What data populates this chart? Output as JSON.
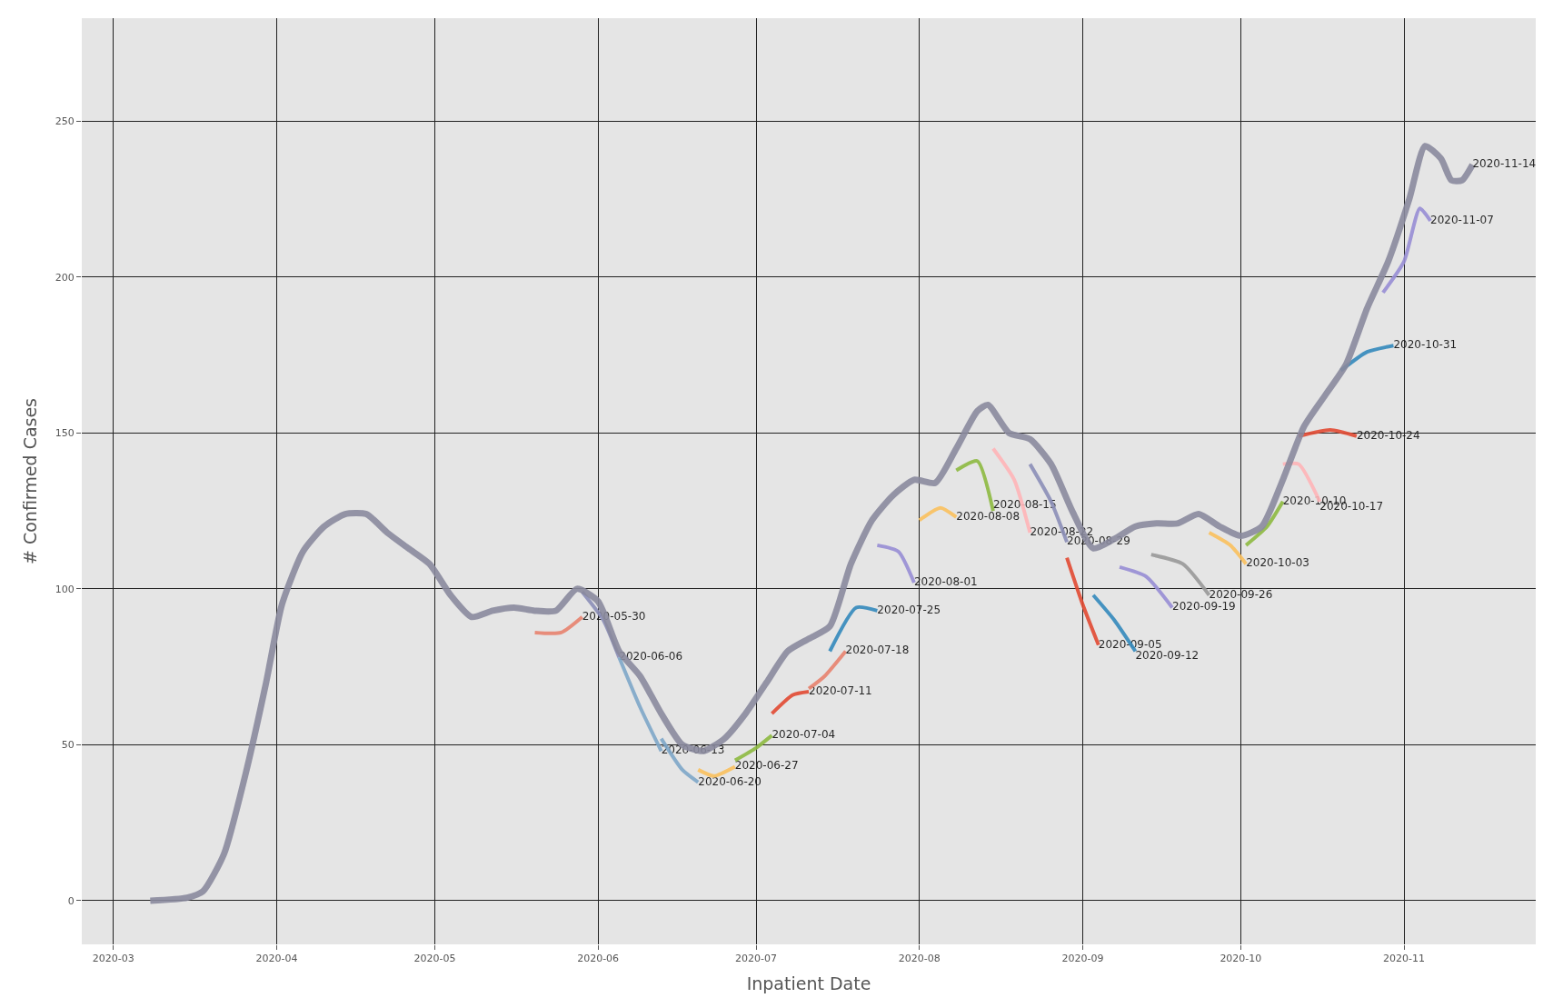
{
  "chart_data": {
    "type": "line",
    "xlabel": "Inpatient Date",
    "ylabel": "# Confirmed Cases",
    "xlim": [
      "2020-02-24",
      "2020-11-26"
    ],
    "ylim": [
      -14,
      283
    ],
    "xticks": [
      {
        "value": "2020-03-01",
        "label": "2020-03"
      },
      {
        "value": "2020-04-01",
        "label": "2020-04"
      },
      {
        "value": "2020-05-01",
        "label": "2020-05"
      },
      {
        "value": "2020-06-01",
        "label": "2020-06"
      },
      {
        "value": "2020-07-01",
        "label": "2020-07"
      },
      {
        "value": "2020-08-01",
        "label": "2020-08"
      },
      {
        "value": "2020-09-01",
        "label": "2020-09"
      },
      {
        "value": "2020-10-01",
        "label": "2020-10"
      },
      {
        "value": "2020-11-01",
        "label": "2020-11"
      }
    ],
    "yticks": [
      0,
      50,
      100,
      150,
      200,
      250
    ],
    "grid": true,
    "legend": false,
    "marker": "none",
    "line_style": "solid",
    "series": [
      {
        "name": "2020-05-30",
        "color": "#e8836f",
        "x": [
          "2020-05-20",
          "2020-05-25",
          "2020-05-29"
        ],
        "values": [
          86,
          86,
          91
        ]
      },
      {
        "name": "2020-06-06",
        "color": "#8c8fb8",
        "x": [
          "2020-05-29",
          "2020-06-02",
          "2020-06-05"
        ],
        "values": [
          99,
          90,
          78
        ]
      },
      {
        "name": "2020-06-13",
        "color": "#7fa7c9",
        "x": [
          "2020-06-05",
          "2020-06-09",
          "2020-06-13"
        ],
        "values": [
          78,
          62,
          48
        ]
      },
      {
        "name": "2020-06-20",
        "color": "#7fa7c9",
        "x": [
          "2020-06-13",
          "2020-06-17",
          "2020-06-20"
        ],
        "values": [
          52,
          42,
          38
        ]
      },
      {
        "name": "2020-06-27",
        "color": "#fbc15e",
        "x": [
          "2020-06-20",
          "2020-06-23",
          "2020-06-27"
        ],
        "values": [
          42,
          40,
          43
        ]
      },
      {
        "name": "2020-07-04",
        "color": "#8eba42",
        "x": [
          "2020-06-27",
          "2020-07-01",
          "2020-07-04"
        ],
        "values": [
          45,
          49,
          53
        ]
      },
      {
        "name": "2020-07-11",
        "color": "#e24a33",
        "x": [
          "2020-07-04",
          "2020-07-08",
          "2020-07-11"
        ],
        "values": [
          60,
          66,
          67
        ]
      },
      {
        "name": "2020-07-18",
        "color": "#e8836f",
        "x": [
          "2020-07-11",
          "2020-07-14",
          "2020-07-18"
        ],
        "values": [
          68,
          72,
          80
        ]
      },
      {
        "name": "2020-07-25",
        "color": "#348abd",
        "x": [
          "2020-07-15",
          "2020-07-20",
          "2020-07-24"
        ],
        "values": [
          80,
          94,
          93
        ]
      },
      {
        "name": "2020-08-01",
        "color": "#988ed5",
        "x": [
          "2020-07-24",
          "2020-07-28",
          "2020-07-31"
        ],
        "values": [
          114,
          112,
          102
        ]
      },
      {
        "name": "2020-08-08",
        "color": "#fbc15e",
        "x": [
          "2020-08-01",
          "2020-08-05",
          "2020-08-08"
        ],
        "values": [
          122,
          126,
          123
        ]
      },
      {
        "name": "2020-08-15",
        "color": "#8eba42",
        "x": [
          "2020-08-08",
          "2020-08-12",
          "2020-08-15"
        ],
        "values": [
          138,
          141,
          125
        ]
      },
      {
        "name": "2020-08-22",
        "color": "#ffb5b8",
        "x": [
          "2020-08-15",
          "2020-08-19",
          "2020-08-22"
        ],
        "values": [
          145,
          135,
          118
        ]
      },
      {
        "name": "2020-08-29",
        "color": "#8c8fb8",
        "x": [
          "2020-08-22",
          "2020-08-26",
          "2020-08-29"
        ],
        "values": [
          140,
          128,
          115
        ]
      },
      {
        "name": "2020-09-05",
        "color": "#e24a33",
        "x": [
          "2020-08-29",
          "2020-09-01",
          "2020-09-04"
        ],
        "values": [
          110,
          95,
          82
        ]
      },
      {
        "name": "2020-09-12",
        "color": "#348abd",
        "x": [
          "2020-09-03",
          "2020-09-07",
          "2020-09-11"
        ],
        "values": [
          98,
          90,
          80
        ]
      },
      {
        "name": "2020-09-19",
        "color": "#988ed5",
        "x": [
          "2020-09-08",
          "2020-09-13",
          "2020-09-18"
        ],
        "values": [
          107,
          104,
          94
        ]
      },
      {
        "name": "2020-09-26",
        "color": "#999999",
        "x": [
          "2020-09-14",
          "2020-09-20",
          "2020-09-25"
        ],
        "values": [
          111,
          108,
          98
        ]
      },
      {
        "name": "2020-10-03",
        "color": "#fbc15e",
        "x": [
          "2020-09-25",
          "2020-09-29",
          "2020-10-02"
        ],
        "values": [
          118,
          114,
          108
        ]
      },
      {
        "name": "2020-10-10",
        "color": "#8eba42",
        "x": [
          "2020-10-02",
          "2020-10-06",
          "2020-10-09"
        ],
        "values": [
          114,
          120,
          128
        ]
      },
      {
        "name": "2020-10-17",
        "color": "#ffb5b8",
        "x": [
          "2020-10-09",
          "2020-10-12",
          "2020-10-16"
        ],
        "values": [
          140,
          140,
          128
        ]
      },
      {
        "name": "2020-10-24",
        "color": "#e24a33",
        "x": [
          "2020-10-12",
          "2020-10-18",
          "2020-10-23"
        ],
        "values": [
          149,
          151,
          149
        ]
      },
      {
        "name": "2020-10-31",
        "color": "#348abd",
        "x": [
          "2020-10-20",
          "2020-10-25",
          "2020-10-30"
        ],
        "values": [
          170,
          176,
          178
        ]
      },
      {
        "name": "2020-11-07",
        "color": "#988ed5",
        "x": [
          "2020-10-28",
          "2020-11-01",
          "2020-11-04",
          "2020-11-06"
        ],
        "values": [
          195,
          205,
          222,
          218
        ]
      },
      {
        "name": "2020-11-14",
        "color": "#8a8a9e",
        "x": [
          "2020-03-08",
          "2020-03-15",
          "2020-03-18",
          "2020-03-22",
          "2020-03-26",
          "2020-03-30",
          "2020-04-02",
          "2020-04-06",
          "2020-04-10",
          "2020-04-14",
          "2020-04-18",
          "2020-04-22",
          "2020-04-26",
          "2020-04-30",
          "2020-05-04",
          "2020-05-08",
          "2020-05-12",
          "2020-05-16",
          "2020-05-20",
          "2020-05-24",
          "2020-05-28",
          "2020-06-01",
          "2020-06-05",
          "2020-06-09",
          "2020-06-13",
          "2020-06-17",
          "2020-06-21",
          "2020-06-25",
          "2020-06-29",
          "2020-07-03",
          "2020-07-07",
          "2020-07-11",
          "2020-07-15",
          "2020-07-19",
          "2020-07-23",
          "2020-07-27",
          "2020-07-31",
          "2020-08-04",
          "2020-08-08",
          "2020-08-12",
          "2020-08-14",
          "2020-08-18",
          "2020-08-22",
          "2020-08-26",
          "2020-08-30",
          "2020-09-03",
          "2020-09-07",
          "2020-09-11",
          "2020-09-15",
          "2020-09-19",
          "2020-09-23",
          "2020-09-27",
          "2020-10-01",
          "2020-10-05",
          "2020-10-09",
          "2020-10-13",
          "2020-10-17",
          "2020-10-21",
          "2020-10-25",
          "2020-10-29",
          "2020-11-02",
          "2020-11-05",
          "2020-11-08",
          "2020-11-10",
          "2020-11-12",
          "2020-11-14"
        ],
        "values": [
          0,
          1,
          3,
          15,
          40,
          70,
          95,
          112,
          120,
          124,
          124,
          118,
          113,
          108,
          98,
          91,
          93,
          94,
          93,
          93,
          100,
          96,
          80,
          72,
          60,
          50,
          48,
          52,
          60,
          70,
          80,
          84,
          88,
          108,
          122,
          130,
          135,
          134,
          145,
          157,
          159,
          150,
          148,
          140,
          125,
          113,
          116,
          120,
          121,
          121,
          124,
          120,
          117,
          120,
          135,
          152,
          162,
          172,
          190,
          205,
          225,
          242,
          238,
          231,
          231,
          236
        ]
      }
    ]
  }
}
